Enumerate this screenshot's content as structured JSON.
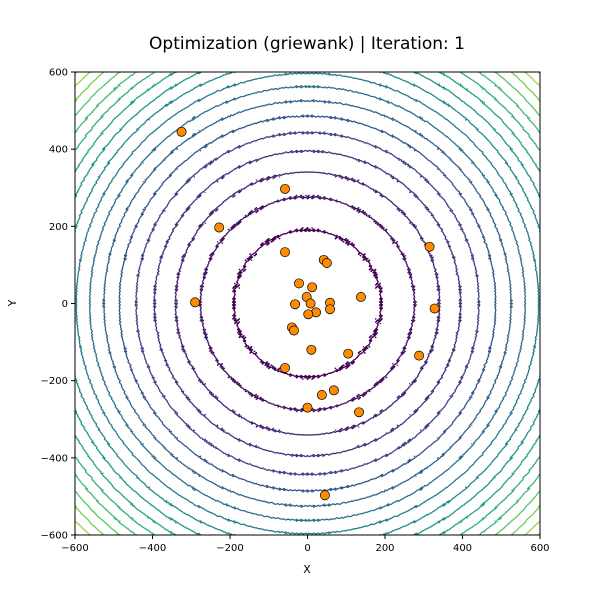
{
  "chart_data": {
    "type": "scatter",
    "title": "Optimization (griewank) | Iteration: 1",
    "xlabel": "X",
    "ylabel": "Y",
    "xlim": [
      -600,
      600
    ],
    "ylim": [
      -600,
      600
    ],
    "xticks": [
      -600,
      -400,
      -200,
      0,
      200,
      400,
      600
    ],
    "yticks": [
      -600,
      -400,
      -200,
      0,
      200,
      400,
      600
    ],
    "grid": false,
    "background": {
      "type": "contour",
      "function": "griewank",
      "levels": [
        10,
        20,
        30,
        40,
        50,
        60,
        70,
        80,
        90,
        100,
        110,
        120,
        130,
        140,
        150,
        160,
        170,
        180
      ],
      "colormap": "viridis"
    },
    "series": [
      {
        "marker_color": "#ff8c00",
        "marker_edge": "#000000",
        "points": [
          {
            "x": -325,
            "y": 445
          },
          {
            "x": -58,
            "y": 297
          },
          {
            "x": -228,
            "y": 197
          },
          {
            "x": -58,
            "y": 133
          },
          {
            "x": 315,
            "y": 147
          },
          {
            "x": 42,
            "y": 113
          },
          {
            "x": 50,
            "y": 105
          },
          {
            "x": -22,
            "y": 52
          },
          {
            "x": 12,
            "y": 42
          },
          {
            "x": 138,
            "y": 17
          },
          {
            "x": -2,
            "y": 17
          },
          {
            "x": -290,
            "y": 3
          },
          {
            "x": 58,
            "y": 2
          },
          {
            "x": -32,
            "y": -2
          },
          {
            "x": 8,
            "y": 0
          },
          {
            "x": 328,
            "y": -13
          },
          {
            "x": 58,
            "y": -15
          },
          {
            "x": 22,
            "y": -23
          },
          {
            "x": 2,
            "y": -28
          },
          {
            "x": -40,
            "y": -62
          },
          {
            "x": -35,
            "y": -70
          },
          {
            "x": 10,
            "y": -120
          },
          {
            "x": 105,
            "y": -130
          },
          {
            "x": 288,
            "y": -135
          },
          {
            "x": -58,
            "y": -167
          },
          {
            "x": 68,
            "y": -225
          },
          {
            "x": 37,
            "y": -237
          },
          {
            "x": 0,
            "y": -270
          },
          {
            "x": 133,
            "y": -282
          },
          {
            "x": 45,
            "y": -497
          }
        ]
      }
    ]
  }
}
